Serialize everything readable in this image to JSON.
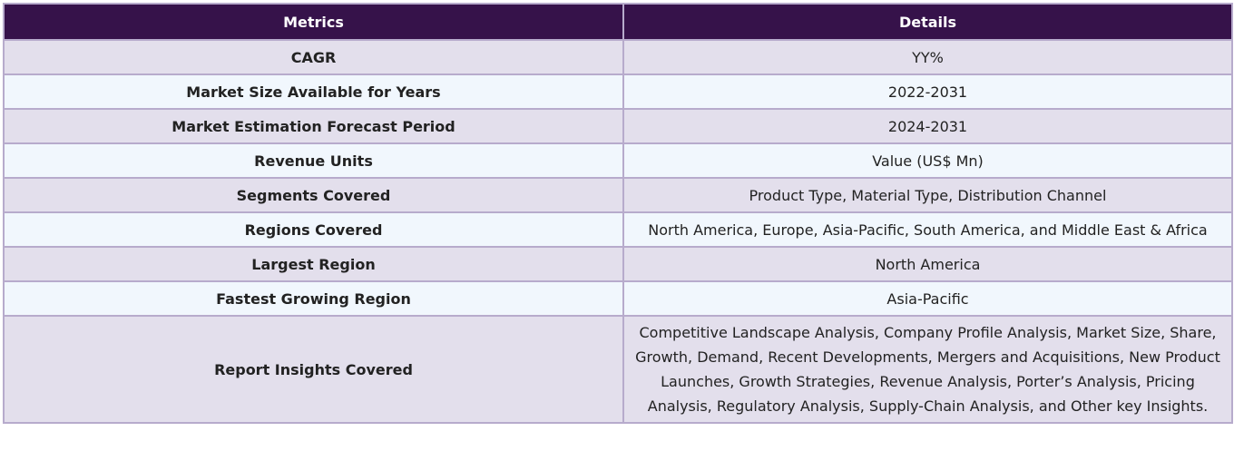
{
  "table": {
    "headers": [
      "Metrics",
      "Details"
    ],
    "rows": [
      {
        "metric": "CAGR",
        "detail": "YY%"
      },
      {
        "metric": "Market Size Available for Years",
        "detail": "2022-2031"
      },
      {
        "metric": "Market Estimation Forecast Period",
        "detail": "2024-2031"
      },
      {
        "metric": "Revenue Units",
        "detail": "Value (US$ Mn)"
      },
      {
        "metric": "Segments Covered",
        "detail": "Product Type, Material Type, Distribution Channel"
      },
      {
        "metric": "Regions Covered",
        "detail": "North America, Europe, Asia-Pacific, South America, and Middle East & Africa"
      },
      {
        "metric": "Largest Region",
        "detail": "North America"
      },
      {
        "metric": "Fastest Growing Region",
        "detail": "Asia-Pacific"
      },
      {
        "metric": "Report Insights Covered",
        "detail": "Competitive Landscape Analysis, Company Profile Analysis, Market Size, Share, Growth, Demand, Recent Developments, Mergers and Acquisitions, New Product Launches, Growth Strategies, Revenue Analysis, Porter’s Analysis, Pricing Analysis, Regulatory Analysis, Supply-Chain Analysis, and Other key Insights."
      }
    ]
  },
  "colors": {
    "header_bg": "#36124a",
    "header_text": "#ffffff",
    "row_odd_bg": "#e3dfec",
    "row_even_bg": "#f1f7fd",
    "border": "#b7abcc"
  }
}
